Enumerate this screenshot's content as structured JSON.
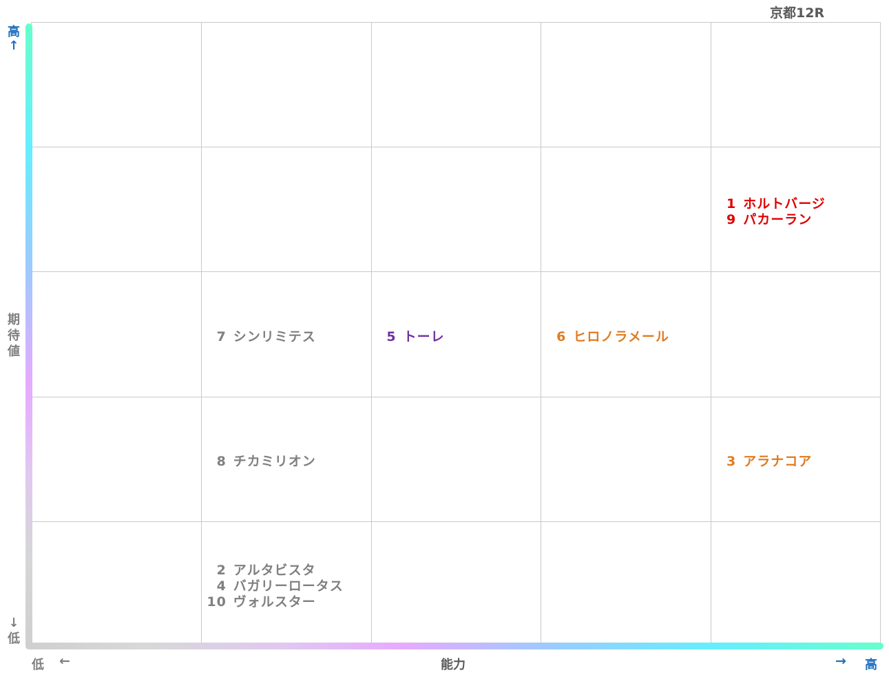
{
  "chart_data": {
    "type": "scatter",
    "title": "京都12R",
    "xlabel": "能力",
    "ylabel": "期待値",
    "x_low_label": "低",
    "x_high_label": "高",
    "y_low_label": "低",
    "y_high_label": "高",
    "x_left_arrow": "←",
    "x_right_arrow": "→",
    "y_up_arrow": "↑",
    "y_down_arrow": "↓",
    "grid": true,
    "x_levels": 5,
    "y_levels": 5,
    "points": [
      {
        "num": "1",
        "name": "ホルトバージ",
        "x": 5,
        "y": 4,
        "color": "#e00000"
      },
      {
        "num": "9",
        "name": "パカーラン",
        "x": 5,
        "y": 4,
        "color": "#e00000"
      },
      {
        "num": "7",
        "name": "シンリミテス",
        "x": 2,
        "y": 3,
        "color": "#7f7f7f"
      },
      {
        "num": "5",
        "name": "トーレ",
        "x": 3,
        "y": 3,
        "color": "#7030a0"
      },
      {
        "num": "6",
        "name": "ヒロノラメール",
        "x": 4,
        "y": 3,
        "color": "#e07b20"
      },
      {
        "num": "8",
        "name": "チカミリオン",
        "x": 2,
        "y": 2,
        "color": "#7f7f7f"
      },
      {
        "num": "3",
        "name": "アラナコア",
        "x": 5,
        "y": 2,
        "color": "#e07b20"
      },
      {
        "num": "2",
        "name": "アルタビスタ",
        "x": 2,
        "y": 1,
        "color": "#7f7f7f"
      },
      {
        "num": "4",
        "name": "バガリーロータス",
        "x": 2,
        "y": 1,
        "color": "#7f7f7f"
      },
      {
        "num": "10",
        "name": "ヴォルスター",
        "x": 2,
        "y": 1,
        "color": "#7f7f7f"
      }
    ]
  }
}
